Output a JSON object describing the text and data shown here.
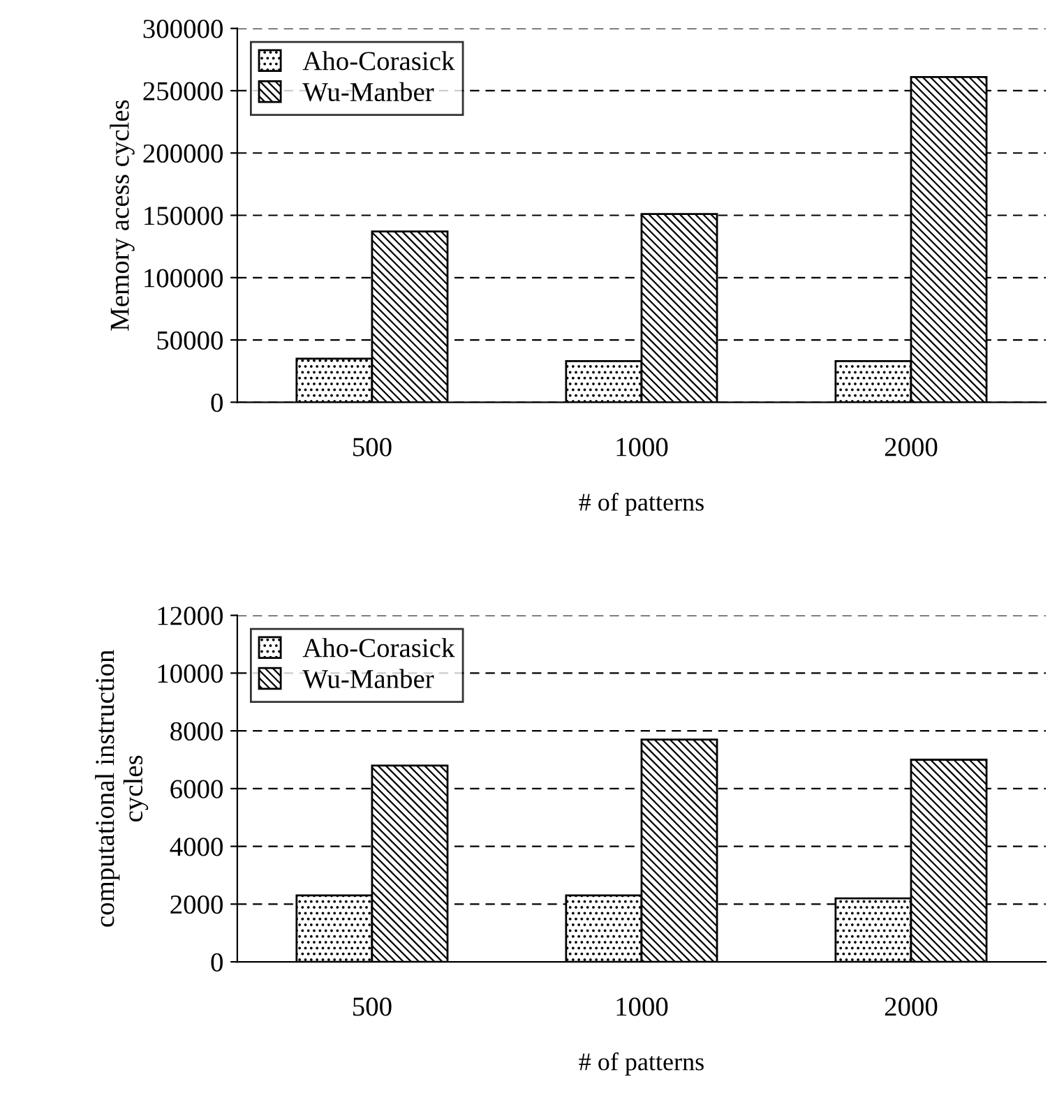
{
  "chart_data": [
    {
      "type": "bar",
      "categories": [
        "500",
        "1000",
        "2000"
      ],
      "xlabel": "# of patterns",
      "ylabel": "Memory acess cycles",
      "series": [
        {
          "name": "Aho-Corasick",
          "color": "#000000",
          "values": [
            35000,
            33000,
            33000
          ]
        },
        {
          "name": "Wu-Manber",
          "color": "#000000",
          "values": [
            137000,
            151000,
            261000
          ]
        }
      ],
      "ylim": [
        0,
        300000
      ],
      "yticks": [
        0,
        50000,
        100000,
        150000,
        200000,
        250000,
        300000
      ],
      "grid": "y",
      "legend": "top left"
    },
    {
      "type": "bar",
      "categories": [
        "500",
        "1000",
        "2000"
      ],
      "xlabel": "# of patterns",
      "ylabel": "computational instruction\ncycles",
      "series": [
        {
          "name": "Aho-Corasick",
          "color": "#000000",
          "values": [
            2300,
            2300,
            2200
          ]
        },
        {
          "name": "Wu-Manber",
          "color": "#000000",
          "values": [
            6800,
            7700,
            7000
          ]
        }
      ],
      "ylim": [
        0,
        12000
      ],
      "yticks": [
        0,
        2000,
        4000,
        6000,
        8000,
        10000,
        12000
      ],
      "grid": "y",
      "legend": "top left"
    }
  ]
}
